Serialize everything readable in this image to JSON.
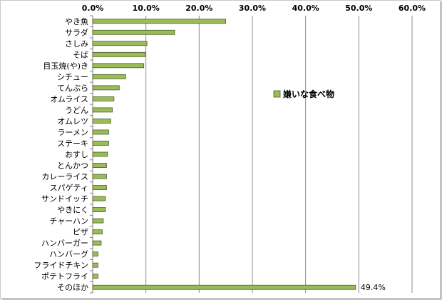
{
  "chart_data": {
    "type": "bar",
    "orientation": "horizontal",
    "title": "",
    "xlabel": "",
    "ylabel": "",
    "xlim": [
      0,
      60
    ],
    "x_ticks": [
      "0.0%",
      "10.0%",
      "20.0%",
      "30.0%",
      "40.0%",
      "50.0%",
      "60.0%"
    ],
    "grid": true,
    "legend_position": "right",
    "categories": [
      "やき魚",
      "サラダ",
      "さしみ",
      "そば",
      "目玉焼(や)き",
      "シチュー",
      "てんぷら",
      "オムライス",
      "うどん",
      "オムレツ",
      "ラーメン",
      "ステーキ",
      "おすし",
      "とんかつ",
      "カレーライス",
      "スパゲティ",
      "サンドイッチ",
      "やきにく",
      "チャーハン",
      "ピザ",
      "ハンバーガー",
      "ハンバーグ",
      "フライドチキン",
      "ポテトフライ",
      "そのほか"
    ],
    "series": [
      {
        "name": "嫌いな食べ物",
        "color": "#9bbb59",
        "values": [
          25.0,
          15.4,
          10.2,
          9.9,
          9.6,
          6.2,
          5.0,
          4.0,
          3.7,
          3.4,
          3.0,
          3.0,
          2.8,
          2.6,
          2.6,
          2.6,
          2.4,
          2.4,
          2.0,
          1.8,
          1.6,
          1.0,
          1.0,
          1.0,
          49.4
        ]
      }
    ],
    "data_labels": [
      {
        "category": "そのほか",
        "text": "49.4%"
      }
    ]
  }
}
